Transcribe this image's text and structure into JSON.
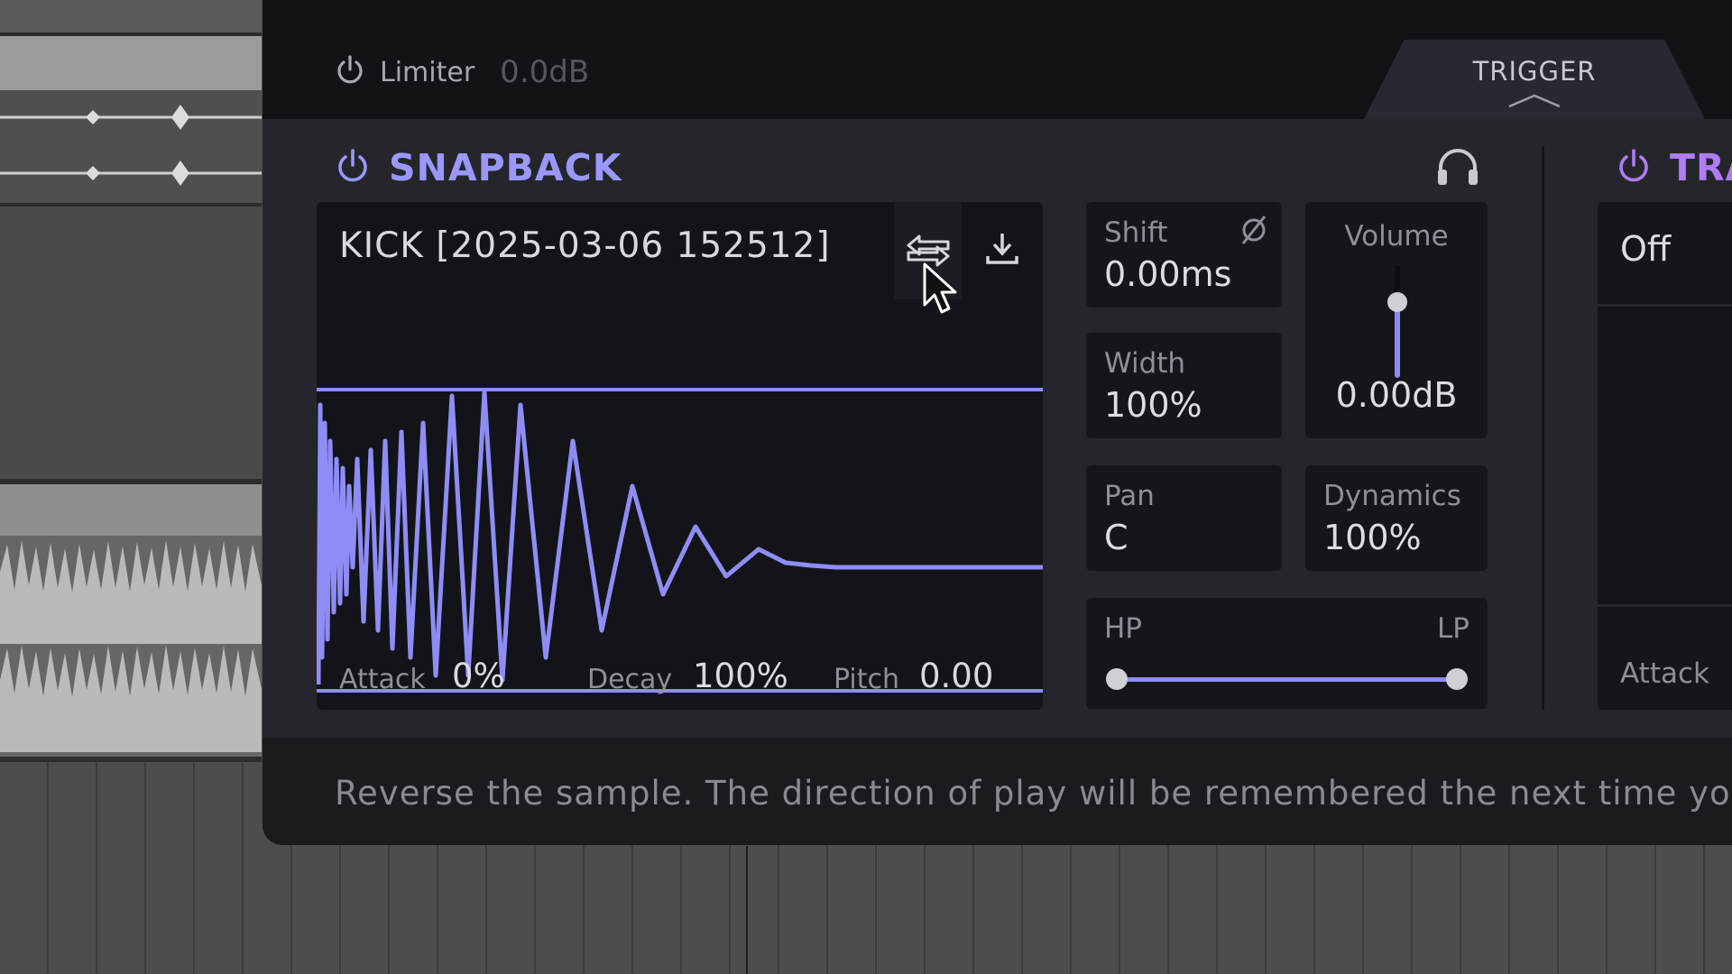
{
  "limiter": {
    "label": "Limiter",
    "value": "0.0dB"
  },
  "trigger_tab": {
    "label": "TRIGGER"
  },
  "snapback": {
    "title": "SNAPBACK",
    "sample_name": "KICK [2025-03-06 152512]",
    "attack": {
      "label": "Attack",
      "value": "0%"
    },
    "decay": {
      "label": "Decay",
      "value": "100%"
    },
    "pitch": {
      "label": "Pitch",
      "value": "0.00"
    },
    "shift": {
      "label": "Shift",
      "value": "0.00ms"
    },
    "width": {
      "label": "Width",
      "value": "100%"
    },
    "pan": {
      "label": "Pan",
      "value": "C"
    },
    "volume": {
      "label": "Volume",
      "value": "0.00dB"
    },
    "dynamics": {
      "label": "Dynamics",
      "value": "100%"
    },
    "filter": {
      "hp_label": "HP",
      "lp_label": "LP"
    }
  },
  "section2": {
    "title": "TRA",
    "mode_value": "Off",
    "attack_label": "Attack"
  },
  "hint": "Reverse the sample. The direction of play will be remembered the next time you",
  "colors": {
    "accent": "#9a97ff",
    "section2_accent": "#b07cf4",
    "panel": "#1d1e22",
    "waveform": "#8f8cf5"
  },
  "icons": {
    "limiter_power": "power-icon",
    "snapback_power": "power-icon",
    "monitor": "headphones-icon",
    "reverse": "reverse-arrows-icon",
    "save": "download-icon",
    "shift_phase": "phase-invert-icon",
    "trigger_chevron": "chevron-up-icon",
    "cursor": "mouse-pointer-icon"
  }
}
